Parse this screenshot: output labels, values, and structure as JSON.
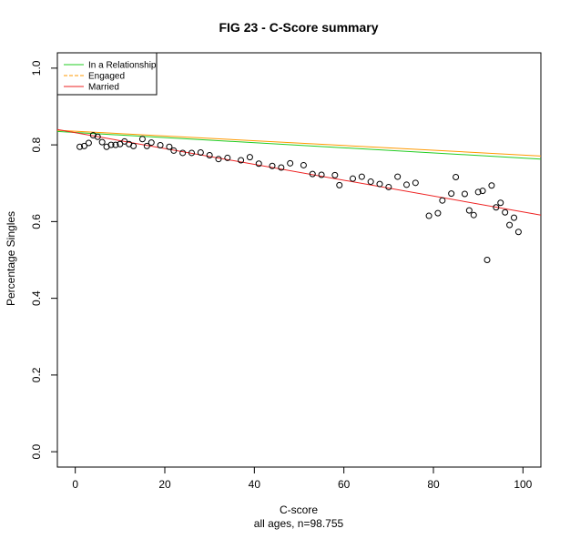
{
  "chart_data": {
    "type": "scatter",
    "title": "FIG 23 - C-Score summary",
    "xlabel": "C-score",
    "subtitle": "all ages, n=98.755",
    "ylabel": "Percentage Singles",
    "xlim": [
      -4,
      104
    ],
    "ylim": [
      -0.04,
      1.04
    ],
    "xticks": [
      0,
      20,
      40,
      60,
      80,
      100
    ],
    "yticks": [
      0.0,
      0.2,
      0.4,
      0.6,
      0.8,
      1.0
    ],
    "ytick_labels": [
      "0.0",
      "0.2",
      "0.4",
      "0.6",
      "0.8",
      "1.0"
    ],
    "grid": false,
    "legend_position": "top-left",
    "legend": [
      {
        "name": "In a Relationship",
        "color": "#22cc22",
        "style": "solid"
      },
      {
        "name": "Engaged",
        "color": "#ff9900",
        "style": "dashed"
      },
      {
        "name": "Married",
        "color": "#ee2222",
        "style": "solid"
      }
    ],
    "lines": [
      {
        "name": "In a Relationship",
        "color": "#22cc22",
        "x": [
          -4,
          104
        ],
        "y": [
          0.835,
          0.763
        ]
      },
      {
        "name": "Engaged",
        "color": "#ff9900",
        "x": [
          -4,
          104
        ],
        "y": [
          0.838,
          0.771
        ]
      },
      {
        "name": "Married",
        "color": "#ee2222",
        "x": [
          -4,
          104
        ],
        "y": [
          0.84,
          0.617
        ]
      }
    ],
    "points": {
      "x": [
        1,
        2,
        3,
        4,
        5,
        6,
        7,
        8,
        9,
        10,
        11,
        12,
        13,
        15,
        16,
        17,
        19,
        21,
        22,
        24,
        26,
        28,
        30,
        32,
        34,
        37,
        39,
        41,
        44,
        46,
        48,
        51,
        53,
        55,
        58,
        59,
        62,
        64,
        66,
        68,
        70,
        72,
        74,
        76,
        79,
        81,
        82,
        84,
        85,
        87,
        88,
        89,
        90,
        91,
        92,
        93,
        94,
        95,
        96,
        97,
        98,
        99
      ],
      "y": [
        0.795,
        0.797,
        0.805,
        0.825,
        0.821,
        0.807,
        0.795,
        0.8,
        0.8,
        0.802,
        0.809,
        0.802,
        0.797,
        0.815,
        0.797,
        0.806,
        0.799,
        0.795,
        0.785,
        0.779,
        0.779,
        0.78,
        0.773,
        0.763,
        0.766,
        0.76,
        0.768,
        0.751,
        0.745,
        0.741,
        0.752,
        0.747,
        0.724,
        0.722,
        0.721,
        0.695,
        0.712,
        0.717,
        0.704,
        0.698,
        0.69,
        0.717,
        0.696,
        0.701,
        0.615,
        0.622,
        0.655,
        0.673,
        0.716,
        0.672,
        0.629,
        0.617,
        0.677,
        0.68,
        0.5,
        0.694,
        0.637,
        0.649,
        0.624,
        0.591,
        0.61,
        0.573
      ]
    }
  }
}
